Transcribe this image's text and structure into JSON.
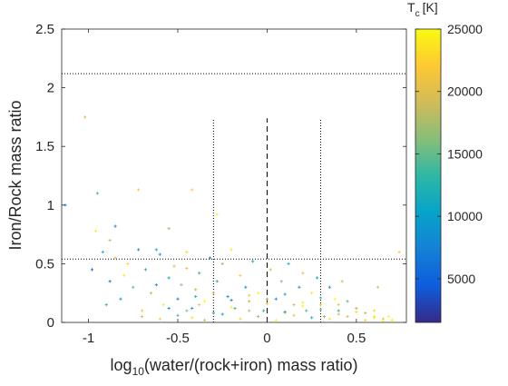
{
  "chart_data": {
    "type": "scatter",
    "title": "",
    "xlabel": {
      "prefix": "log",
      "subscript": "10",
      "rest": "(water/(rock+iron) mass ratio)"
    },
    "ylabel": "Iron/Rock mass ratio",
    "xlim": [
      -1.15,
      0.78
    ],
    "ylim": [
      0,
      2.5
    ],
    "xticks": [
      -1,
      -0.5,
      0,
      0.5
    ],
    "xtick_labels": [
      "-1",
      "-0.5",
      "0",
      "0.5"
    ],
    "yticks": [
      0,
      0.5,
      1,
      1.5,
      2,
      2.5
    ],
    "ytick_labels": [
      "0",
      "0.5",
      "1",
      "1.5",
      "2",
      "2.5"
    ],
    "grid": false,
    "colorbar": {
      "label": {
        "main": "T",
        "subscript": "c",
        "unit": "[K]"
      },
      "range": [
        1500,
        25000
      ],
      "ticks": [
        5000,
        10000,
        15000,
        20000,
        25000
      ],
      "tick_labels": [
        "5000",
        "10000",
        "15000",
        "20000",
        "25000"
      ],
      "colormap": "parula",
      "colors": [
        "#352a87",
        "#0f5cdd",
        "#1481d6",
        "#06a4ca",
        "#2eb7a4",
        "#87bf77",
        "#d1bb59",
        "#fec832",
        "#f9fb0e"
      ]
    },
    "reference_lines": [
      {
        "orientation": "horizontal",
        "value": 2.12,
        "style": "dotted",
        "from": -1.15,
        "to": 0.78
      },
      {
        "orientation": "horizontal",
        "value": 0.54,
        "style": "dotted",
        "from": -1.15,
        "to": 0.78
      },
      {
        "orientation": "vertical",
        "value": -0.3,
        "style": "dotted",
        "from": 0,
        "to": 1.73
      },
      {
        "orientation": "vertical",
        "value": 0.3,
        "style": "dotted",
        "from": 0,
        "to": 1.73
      },
      {
        "orientation": "vertical",
        "value": 0,
        "style": "dashed",
        "from": 0,
        "to": 1.74
      }
    ],
    "series": [
      {
        "marker": "+",
        "x": [
          -1.02,
          -0.95,
          -1.13,
          -0.72,
          -0.85,
          -0.96,
          -0.42,
          -0.92,
          -0.88,
          -0.98,
          -0.78,
          -0.62,
          -0.55,
          -0.62,
          -0.45,
          -0.28,
          -0.9,
          -0.88,
          -0.85,
          -0.82,
          -0.8,
          -0.75,
          -0.72,
          -0.7,
          -0.68,
          -0.65,
          -0.6,
          -0.58,
          -0.55,
          -0.52,
          -0.5,
          -0.48,
          -0.45,
          -0.42,
          -0.4,
          -0.38,
          -0.35,
          -0.32,
          -0.3,
          -0.28,
          -0.25,
          -0.22,
          -0.2,
          -0.18,
          -0.15,
          -0.12,
          -0.1,
          -0.08,
          -0.05,
          -0.02,
          0.02,
          0.05,
          0.08,
          0.1,
          0.12,
          0.15,
          0.18,
          0.2,
          0.22,
          0.25,
          0.28,
          0.3,
          0.32,
          0.35,
          0.38,
          0.4,
          0.42,
          0.45,
          0.5,
          0.55,
          0.6,
          0.65,
          0.7,
          -0.7,
          -0.6,
          -0.5,
          -0.42,
          -0.35,
          -0.25,
          -0.15,
          -0.05,
          0.05,
          0.15,
          0.25,
          0.35,
          0.45,
          0.55,
          0.65,
          -0.55,
          -0.45,
          -0.38,
          -0.3,
          -0.2,
          -0.1,
          0.0,
          0.1,
          0.2,
          0.3,
          0.4,
          0.5,
          0.6,
          0.7,
          -0.4,
          -0.3,
          -0.2,
          -0.1,
          0.0,
          0.1,
          0.2,
          0.3,
          0.4,
          0.5,
          0.6,
          0.74,
          0.68,
          0.62
        ],
        "y": [
          1.75,
          1.1,
          1.0,
          1.13,
          0.82,
          0.78,
          1.13,
          0.6,
          0.7,
          0.45,
          0.5,
          0.62,
          0.8,
          0.32,
          0.46,
          0.92,
          0.15,
          0.35,
          0.55,
          0.2,
          0.4,
          0.3,
          0.62,
          0.1,
          0.45,
          0.25,
          0.58,
          0.15,
          0.38,
          0.48,
          0.2,
          0.32,
          0.6,
          0.12,
          0.28,
          0.42,
          0.18,
          0.55,
          0.08,
          0.35,
          0.5,
          0.22,
          0.62,
          0.12,
          0.4,
          0.3,
          0.18,
          0.52,
          0.25,
          0.1,
          0.45,
          0.2,
          0.35,
          0.08,
          0.5,
          0.15,
          0.3,
          0.42,
          0.1,
          0.25,
          0.38,
          0.15,
          0.05,
          0.3,
          0.2,
          0.1,
          0.35,
          0.18,
          0.12,
          0.08,
          0.05,
          0.03,
          0.02,
          0.05,
          0.03,
          0.06,
          0.04,
          0.02,
          0.07,
          0.03,
          0.05,
          0.02,
          0.06,
          0.04,
          0.03,
          0.05,
          0.02,
          0.01,
          0.12,
          0.1,
          0.15,
          0.08,
          0.13,
          0.1,
          0.16,
          0.09,
          0.14,
          0.11,
          0.07,
          0.09,
          0.04,
          0.02,
          0.22,
          0.25,
          0.19,
          0.23,
          0.2,
          0.24,
          0.17,
          0.21,
          0.15,
          0.12,
          0.1,
          0.6,
          0.05,
          0.3
        ],
        "c": [
          20000,
          14000,
          9000,
          22000,
          8000,
          24000,
          22000,
          12000,
          19000,
          6000,
          23000,
          11000,
          17000,
          9000,
          21000,
          25000,
          13000,
          7000,
          20000,
          10000,
          24000,
          15000,
          8000,
          22000,
          12000,
          18000,
          9000,
          24000,
          11000,
          20000,
          7000,
          16000,
          23000,
          10000,
          19000,
          13000,
          25000,
          8000,
          21000,
          12000,
          17000,
          9000,
          24000,
          14000,
          22000,
          10000,
          18000,
          11000,
          25000,
          13000,
          20000,
          8000,
          16000,
          23000,
          12000,
          19000,
          9000,
          21000,
          14000,
          24000,
          11000,
          22000,
          17000,
          10000,
          25000,
          13000,
          20000,
          15000,
          23000,
          18000,
          24000,
          21000,
          25000,
          19000,
          22000,
          14000,
          24000,
          20000,
          11000,
          23000,
          17000,
          25000,
          21000,
          12000,
          24000,
          19000,
          23000,
          25000,
          9000,
          16000,
          21000,
          13000,
          24000,
          18000,
          22000,
          10000,
          25000,
          15000,
          20000,
          23000,
          24000,
          25000,
          12000,
          19000,
          8000,
          22000,
          16000,
          11000,
          24000,
          14000,
          21000,
          18000,
          23000,
          22000,
          25000,
          20000
        ]
      }
    ]
  }
}
